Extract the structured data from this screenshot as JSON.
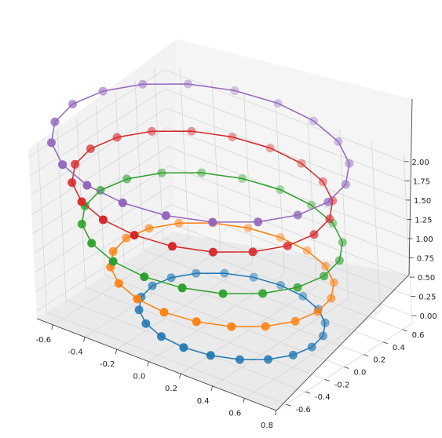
{
  "chart_data": {
    "type": "scatter",
    "projection": "3d",
    "grid": true,
    "legend": "none",
    "xlim": [
      -0.7,
      0.8
    ],
    "ylim": [
      -0.7,
      0.7
    ],
    "zlim": [
      -0.1,
      2.1
    ],
    "xticks": [
      "-0.6",
      "-0.4",
      "-0.2",
      "0.0",
      "0.2",
      "0.4",
      "0.6",
      "0.8"
    ],
    "yticks": [
      "-0.6",
      "-0.4",
      "-0.2",
      "0.0",
      "0.2",
      "0.4",
      "0.6"
    ],
    "zticks": [
      "0.00",
      "0.25",
      "0.50",
      "0.75",
      "1.00",
      "1.25",
      "1.50",
      "1.75",
      "2.00"
    ],
    "points_per_ring": 20,
    "series": [
      {
        "color": "#1f77b4",
        "center_x": 0.1,
        "center_y": 0.0,
        "radius": 0.5,
        "z": 0.0,
        "marker": "circle",
        "line": true
      },
      {
        "color": "#ff7f0e",
        "center_x": 0.05,
        "center_y": 0.0,
        "radius": 0.6,
        "z": 0.5,
        "marker": "circle",
        "line": true
      },
      {
        "color": "#2ca02c",
        "center_x": 0.0,
        "center_y": 0.0,
        "radius": 0.7,
        "z": 1.0,
        "marker": "circle",
        "line": true
      },
      {
        "color": "#d62728",
        "center_x": -0.05,
        "center_y": 0.0,
        "radius": 0.7,
        "z": 1.5,
        "marker": "circle",
        "line": true
      },
      {
        "color": "#9467bd",
        "center_x": -0.05,
        "center_y": 0.0,
        "radius": 0.8,
        "z": 2.0,
        "marker": "circle",
        "line": true
      }
    ]
  }
}
